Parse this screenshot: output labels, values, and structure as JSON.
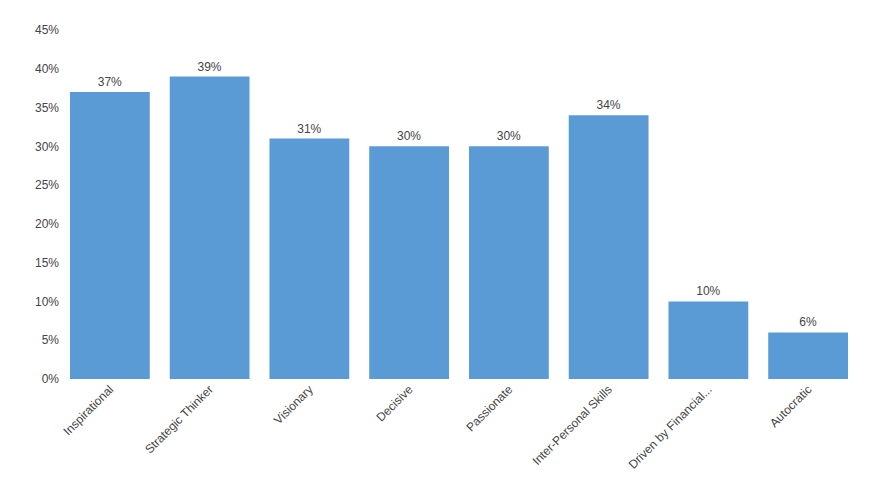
{
  "chart_data": {
    "type": "bar",
    "categories": [
      "Inspirational",
      "Strategic Thinker",
      "Visionary",
      "Decisive",
      "Passionate",
      "Inter-Personal Skills",
      "Driven by Financial...",
      "Autocratic"
    ],
    "values": [
      0.37,
      0.39,
      0.31,
      0.3,
      0.3,
      0.34,
      0.1,
      0.06
    ],
    "value_labels": [
      "37%",
      "39%",
      "31%",
      "30%",
      "30%",
      "34%",
      "10%",
      "6%"
    ],
    "color": "#5b9bd5",
    "ylim": [
      0,
      0.45
    ],
    "yticks": [
      {
        "value": 0,
        "label": "0%"
      },
      {
        "value": 0.05,
        "label": "5%"
      },
      {
        "value": 0.1,
        "label": "10%"
      },
      {
        "value": 0.15,
        "label": "15%"
      },
      {
        "value": 0.2,
        "label": "20%"
      },
      {
        "value": 0.25,
        "label": "25%"
      },
      {
        "value": 0.3,
        "label": "30%"
      },
      {
        "value": 0.35,
        "label": "35%"
      },
      {
        "value": 0.4,
        "label": "40%"
      },
      {
        "value": 0.45,
        "label": "45%"
      }
    ],
    "grid": false,
    "data_labels": true
  }
}
